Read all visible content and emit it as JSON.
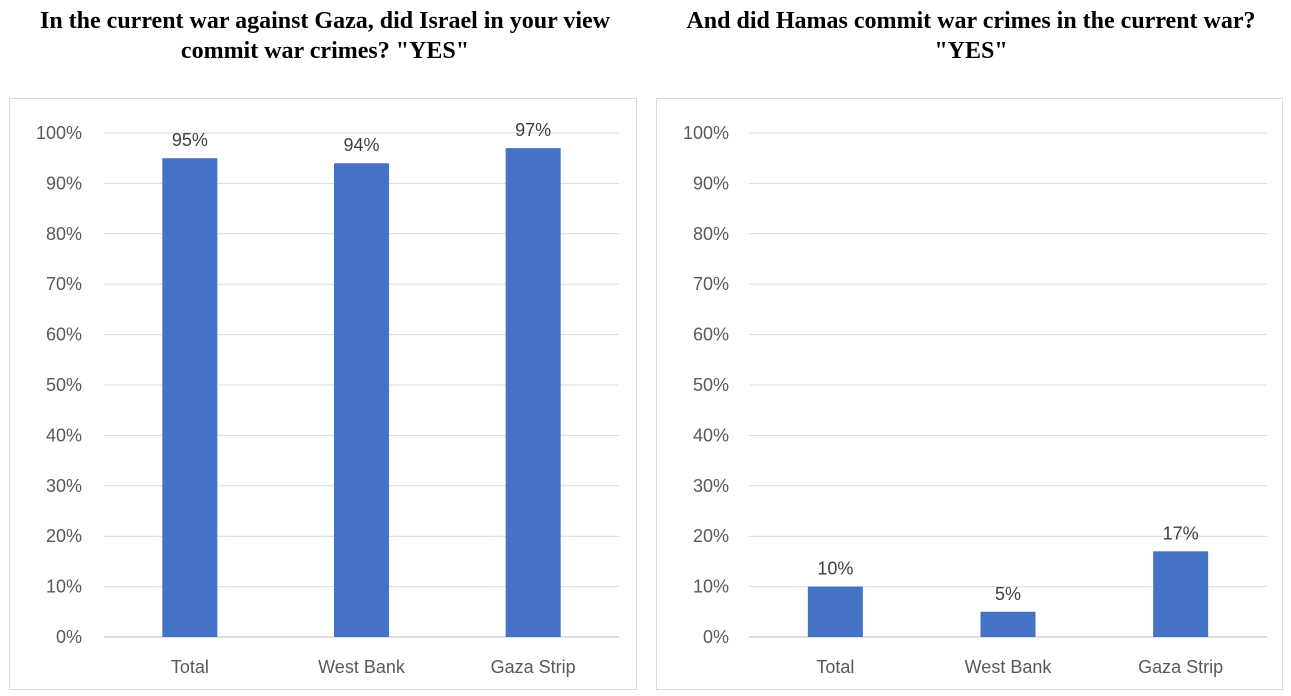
{
  "chart_data": [
    {
      "type": "bar",
      "title": "In the current war against Gaza, did Israel in your view commit war crimes? \"YES\"",
      "categories": [
        "Total",
        "West Bank",
        "Gaza Strip"
      ],
      "values": [
        95,
        94,
        97
      ],
      "data_labels": [
        "95%",
        "94%",
        "97%"
      ],
      "ylim": [
        0,
        100
      ],
      "yticks": [
        "0%",
        "10%",
        "20%",
        "30%",
        "40%",
        "50%",
        "60%",
        "70%",
        "80%",
        "90%",
        "100%"
      ],
      "grid": true,
      "bar_color": "#4472c4"
    },
    {
      "type": "bar",
      "title": "And did Hamas commit war crimes in the current war? \"YES\"",
      "categories": [
        "Total",
        "West Bank",
        "Gaza Strip"
      ],
      "values": [
        10,
        5,
        17
      ],
      "data_labels": [
        "10%",
        "5%",
        "17%"
      ],
      "ylim": [
        0,
        100
      ],
      "yticks": [
        "0%",
        "10%",
        "20%",
        "30%",
        "40%",
        "50%",
        "60%",
        "70%",
        "80%",
        "90%",
        "100%"
      ],
      "grid": true,
      "bar_color": "#4472c4"
    }
  ]
}
